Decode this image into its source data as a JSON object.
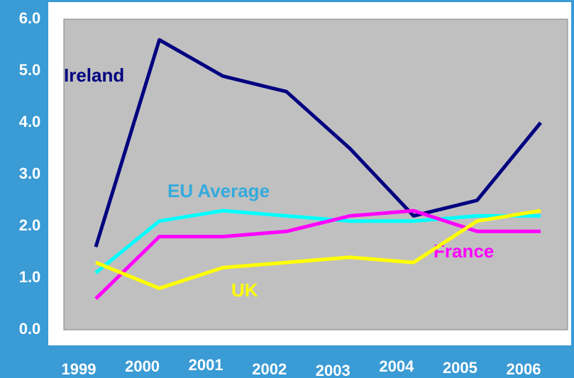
{
  "chart_data": {
    "type": "line",
    "categories": [
      "1999",
      "2000",
      "2001",
      "2002",
      "2003",
      "2004",
      "2005",
      "2006"
    ],
    "series": [
      {
        "name": "Ireland",
        "color": "#000080",
        "label_color": "#000080",
        "values": [
          1.6,
          5.6,
          4.9,
          4.6,
          3.5,
          2.2,
          2.5,
          4.0
        ]
      },
      {
        "name": "EU Average",
        "color": "#00ffff",
        "label_color": "#33aadd",
        "values": [
          1.1,
          2.1,
          2.3,
          2.2,
          2.1,
          2.1,
          2.2,
          2.2
        ]
      },
      {
        "name": "France",
        "color": "#ff00ff",
        "label_color": "#ff00ff",
        "values": [
          0.6,
          1.8,
          1.8,
          1.9,
          2.2,
          2.3,
          1.9,
          1.9
        ]
      },
      {
        "name": "UK",
        "color": "#ffff00",
        "label_color": "#ffff00",
        "values": [
          1.3,
          0.8,
          1.2,
          1.3,
          1.4,
          1.3,
          2.1,
          2.3
        ]
      }
    ],
    "ylim": [
      0,
      6
    ],
    "yticks": [
      {
        "value": 0,
        "label": "0.0"
      },
      {
        "value": 1,
        "label": "1.0"
      },
      {
        "value": 2,
        "label": "2.0"
      },
      {
        "value": 3,
        "label": "3.0"
      },
      {
        "value": 4,
        "label": "4.0"
      },
      {
        "value": 5,
        "label": "5.0"
      },
      {
        "value": 6,
        "label": "6.0"
      }
    ]
  }
}
